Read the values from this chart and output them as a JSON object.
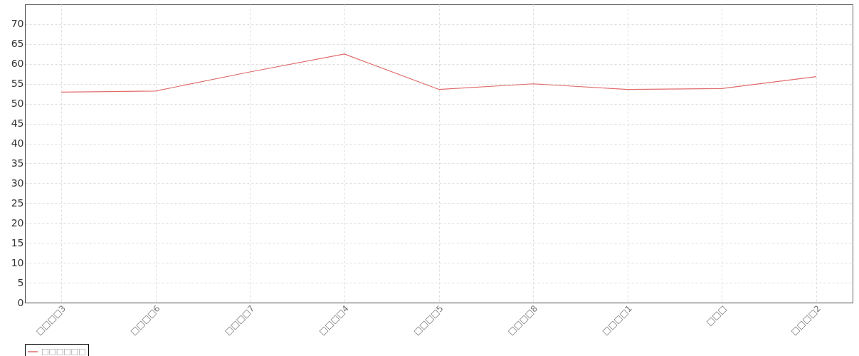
{
  "chart_data": {
    "type": "line",
    "categories": [
      "□□□□3",
      "□□□□6",
      "□□□□7",
      "□□□□4",
      "□□□□5",
      "□□□□8",
      "□□□□1",
      "□□□",
      "□□□□2"
    ],
    "series": [
      {
        "name": "□□□□□□",
        "color": "#e06c6c",
        "values": [
          52.9,
          53.2,
          58.0,
          62.5,
          53.6,
          55.0,
          53.6,
          53.8,
          56.8
        ]
      }
    ],
    "ylim": [
      0,
      75
    ],
    "yticks": [
      0,
      5,
      10,
      15,
      20,
      25,
      30,
      35,
      40,
      45,
      50,
      55,
      60,
      65,
      70
    ],
    "grid": true,
    "legend": "bottom",
    "marker": "none"
  }
}
